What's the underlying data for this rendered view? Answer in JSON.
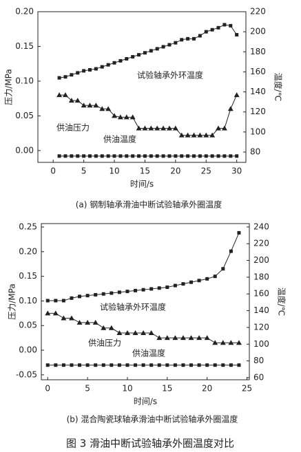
{
  "caption": "图 3  滑油中断试验轴承外圈温度对比",
  "chart_data": [
    {
      "type": "line",
      "caption": "(a) 钢制轴承滑油中断试验轴承外圈温度",
      "xlabel": "时间/s",
      "ylabel": "压力/MPa",
      "y2label": "温度/℃",
      "x": [
        1,
        2,
        3,
        4,
        5,
        6,
        7,
        8,
        9,
        10,
        11,
        12,
        13,
        14,
        15,
        16,
        17,
        18,
        19,
        20,
        21,
        22,
        23,
        24,
        25,
        26,
        27,
        28,
        29,
        30
      ],
      "xlim": [
        -2.5,
        31.5
      ],
      "xticks": [
        0,
        5,
        10,
        15,
        20,
        25,
        30
      ],
      "ylim": [
        -0.017,
        0.2
      ],
      "yticks": [
        {
          "value": 0,
          "label": "0.00"
        },
        {
          "value": 0.05,
          "label": "0.05"
        },
        {
          "value": 0.1,
          "label": "0.10"
        },
        {
          "value": 0.15,
          "label": "0.15"
        },
        {
          "value": 0.2,
          "label": "0.20"
        }
      ],
      "y2lim": [
        69.7,
        220
      ],
      "y2ticks": [
        80,
        100,
        120,
        140,
        160,
        180,
        200,
        220
      ],
      "series": [
        {
          "name": "试验轴承外环温度",
          "axis": "y2",
          "marker": "square",
          "color": "#222222",
          "values": [
            154,
            155,
            157,
            159,
            161,
            162,
            163,
            165,
            167,
            169,
            171,
            173,
            175,
            177,
            179,
            181,
            183,
            185,
            187,
            189,
            192,
            193,
            193,
            196,
            200,
            202,
            204,
            207,
            206,
            197
          ]
        },
        {
          "name": "供油压力",
          "axis": "y",
          "marker": "triangle",
          "color": "#222222",
          "values": [
            0.08,
            0.08,
            0.072,
            0.072,
            0.065,
            0.065,
            0.065,
            0.06,
            0.06,
            0.05,
            0.048,
            0.048,
            0.048,
            0.032,
            0.032,
            0.032,
            0.032,
            0.032,
            0.032,
            0.032,
            0.022,
            0.022,
            0.022,
            0.022,
            0.022,
            0.022,
            0.032,
            0.032,
            0.06,
            0.08
          ]
        },
        {
          "name": "供油温度",
          "axis": "y2",
          "marker": "square",
          "color": "#222222",
          "values": [
            76,
            76,
            76,
            76,
            76,
            76,
            76,
            76,
            76,
            76,
            76,
            76,
            76,
            76,
            76,
            76,
            76,
            76,
            76,
            76,
            76,
            76,
            76,
            76,
            76,
            76,
            76,
            76,
            76,
            76
          ]
        }
      ]
    },
    {
      "type": "line",
      "caption": "(b) 混合陶瓷球轴承滑油中断试验轴承外圈温度",
      "xlabel": "时间/s",
      "ylabel": "压力/MPa",
      "y2label": "温度/℃",
      "x": [
        0,
        1,
        2,
        3,
        4,
        5,
        6,
        7,
        8,
        9,
        10,
        11,
        12,
        13,
        14,
        15,
        16,
        17,
        18,
        19,
        20,
        21,
        22,
        23,
        24
      ],
      "xlim": [
        -0.8,
        25.3
      ],
      "xticks": [
        0,
        5,
        10,
        15,
        20,
        25
      ],
      "ylim": [
        -0.06,
        0.257
      ],
      "yticks": [
        {
          "value": -0.05,
          "label": "-0.05"
        },
        {
          "value": 0,
          "label": "0.00"
        },
        {
          "value": 0.05,
          "label": "0.05"
        },
        {
          "value": 0.1,
          "label": "0.10"
        },
        {
          "value": 0.15,
          "label": "0.15"
        },
        {
          "value": 0.2,
          "label": "0.20"
        },
        {
          "value": 0.25,
          "label": "0.25"
        }
      ],
      "y2lim": [
        57.5,
        244
      ],
      "y2ticks": [
        60,
        80,
        100,
        120,
        140,
        160,
        180,
        200,
        220,
        240
      ],
      "series": [
        {
          "name": "试验轴承外环温度",
          "axis": "y2",
          "marker": "square",
          "color": "#222222",
          "values": [
            152,
            152,
            152,
            155,
            157,
            158,
            159,
            160,
            161,
            162,
            163,
            164,
            165,
            166,
            167,
            168,
            170,
            172,
            174,
            176,
            178,
            181,
            190,
            211,
            233
          ]
        },
        {
          "name": "供油压力",
          "axis": "y",
          "marker": "triangle",
          "color": "#222222",
          "values": [
            0.075,
            0.075,
            0.065,
            0.065,
            0.056,
            0.056,
            0.056,
            0.045,
            0.045,
            0.035,
            0.035,
            0.035,
            0.035,
            0.035,
            0.025,
            0.025,
            0.025,
            0.025,
            0.025,
            0.025,
            0.025,
            0.015,
            0.015,
            0.015,
            0.015
          ]
        },
        {
          "name": "供油温度",
          "axis": "y2",
          "marker": "square",
          "color": "#222222",
          "values": [
            75,
            75,
            75,
            75,
            75,
            75,
            75,
            75,
            75,
            75,
            75,
            75,
            75,
            75,
            75,
            75,
            75,
            75,
            75,
            75,
            75,
            75,
            75,
            75,
            75
          ]
        }
      ]
    }
  ]
}
